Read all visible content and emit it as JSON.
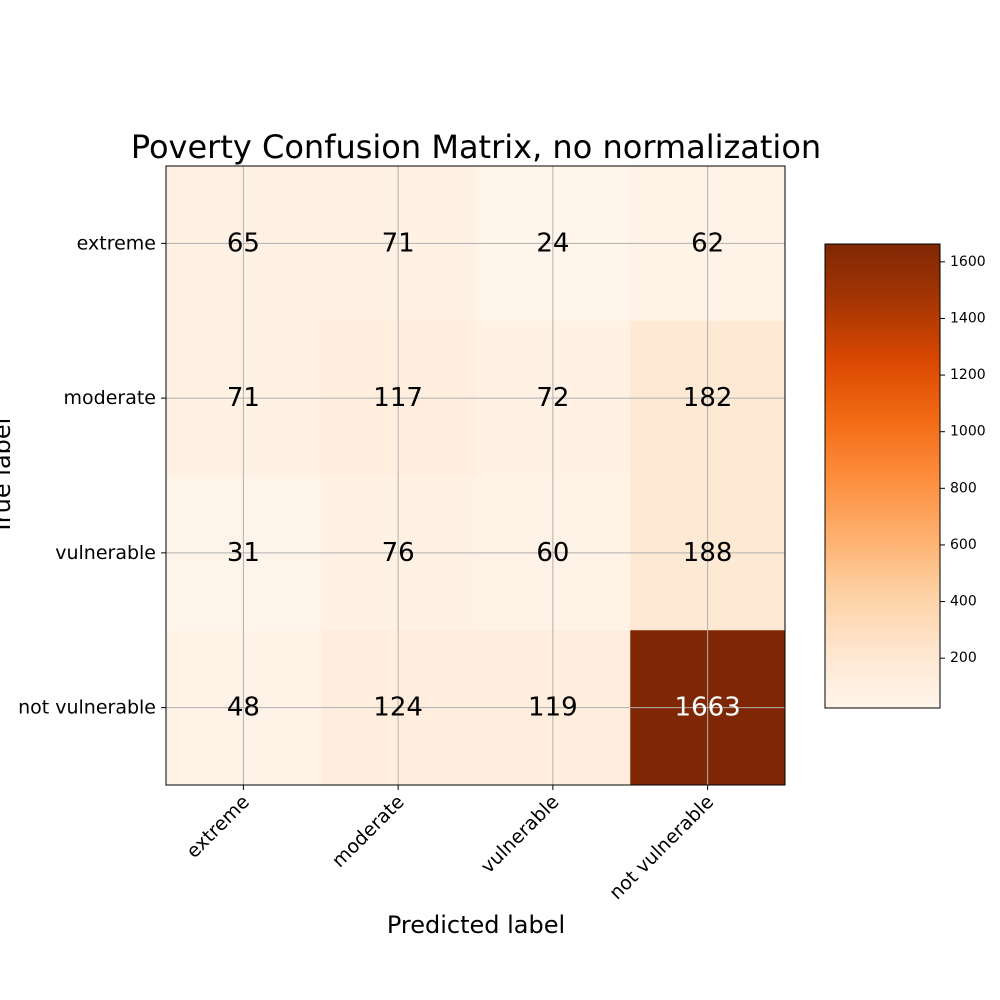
{
  "chart_data": {
    "type": "heatmap",
    "title": "Poverty Confusion Matrix, no normalization",
    "xlabel": "Predicted label",
    "ylabel": "True label",
    "x_categories": [
      "extreme",
      "moderate",
      "vulnerable",
      "not vulnerable"
    ],
    "y_categories": [
      "extreme",
      "moderate",
      "vulnerable",
      "not vulnerable"
    ],
    "matrix": [
      [
        65,
        71,
        24,
        62
      ],
      [
        71,
        117,
        72,
        182
      ],
      [
        31,
        76,
        60,
        188
      ],
      [
        48,
        124,
        119,
        1663
      ]
    ],
    "colormap": "Oranges",
    "colorbar": {
      "range": [
        24,
        1663
      ],
      "ticks": [
        200,
        400,
        600,
        800,
        1000,
        1200,
        1400,
        1600
      ]
    },
    "grid": true
  }
}
